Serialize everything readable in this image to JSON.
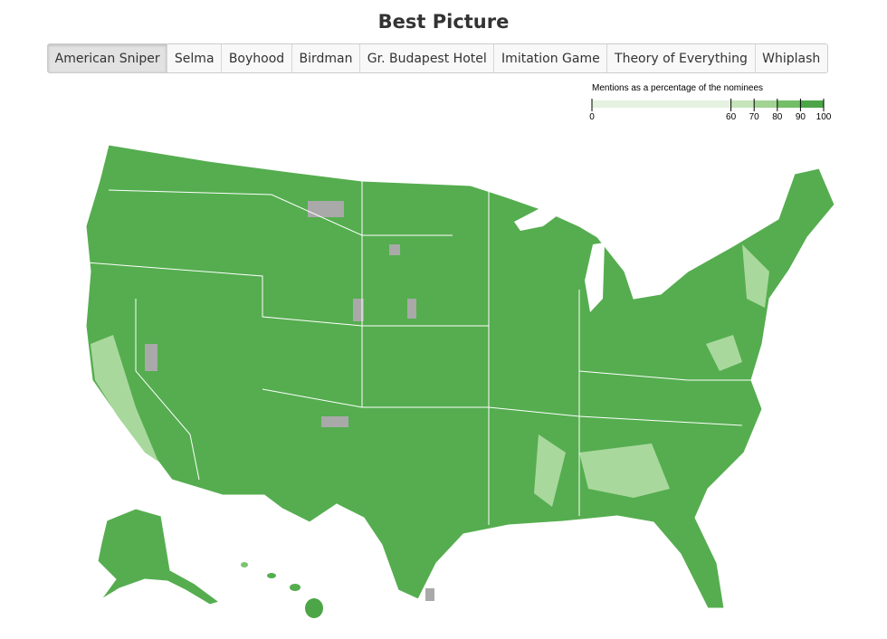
{
  "header": {
    "title": "Best Picture"
  },
  "tabs": {
    "items": [
      "American Sniper",
      "Selma",
      "Boyhood",
      "Birdman",
      "Gr. Budapest Hotel",
      "Imitation Game",
      "Theory of Everything",
      "Whiplash"
    ],
    "active": 0
  },
  "legend": {
    "title": "Mentions as a percentage of the nominees",
    "ticks": [
      0,
      60,
      70,
      80,
      90,
      100
    ],
    "colors": [
      "#e4f2df",
      "#c6e5bb",
      "#a1d393",
      "#73be66",
      "#4ca647"
    ]
  }
}
